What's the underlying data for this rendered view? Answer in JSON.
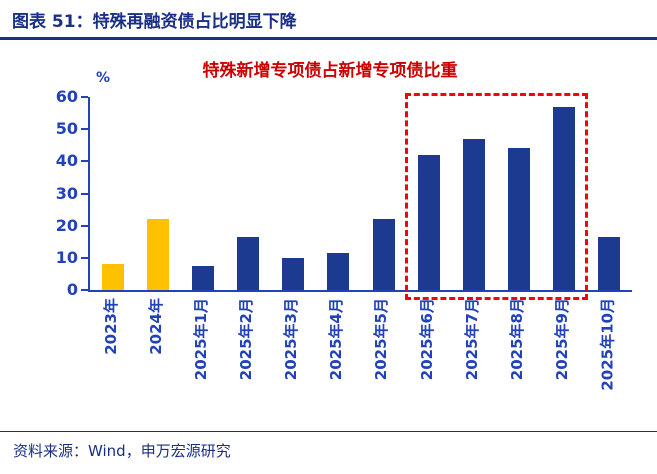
{
  "header": {
    "title": "图表 51：特殊再融资债占比明显下降"
  },
  "chart_data": {
    "type": "bar",
    "title": "特殊新增专项债占新增专项债比重",
    "xlabel": "",
    "ylabel": "%",
    "ylim": [
      0,
      60
    ],
    "ytick_step": 10,
    "grid": false,
    "legend": "none",
    "categories": [
      "2023年",
      "2024年",
      "2025年1月",
      "2025年2月",
      "2025年3月",
      "2025年4月",
      "2025年5月",
      "2025年6月",
      "2025年7月",
      "2025年8月",
      "2025年9月",
      "2025年10月"
    ],
    "values": [
      8,
      22,
      7.5,
      16.5,
      10,
      11.5,
      22,
      42,
      47,
      44,
      57,
      16.5
    ],
    "highlight_indices": [
      0,
      1
    ],
    "annotation_box": {
      "start_index": 7,
      "end_index": 10,
      "style": "dashed",
      "color": "#FF0000"
    }
  },
  "footer": {
    "source": "资料来源：Wind，申万宏源研究"
  },
  "colors": {
    "header_navy": "#1A2F85",
    "axis_blue": "#2142B8",
    "bar_blue": "#1C3A90",
    "bar_highlight_yellow": "#FFC000",
    "chart_title_red": "#CC0000",
    "annotation_red": "#FF0000"
  }
}
